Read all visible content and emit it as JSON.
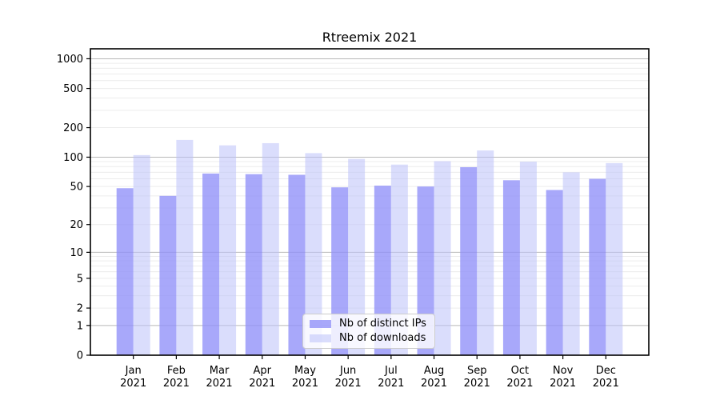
{
  "chart_data": {
    "type": "bar",
    "title": "Rtreemix 2021",
    "categories": [
      "Jan",
      "Feb",
      "Mar",
      "Apr",
      "May",
      "Jun",
      "Jul",
      "Aug",
      "Sep",
      "Oct",
      "Nov",
      "Dec"
    ],
    "x_tick_year": "2021",
    "series": [
      {
        "name": "Nb of distinct IPs",
        "color": "#9090f8",
        "alpha": 0.78,
        "values": [
          48,
          40,
          68,
          67,
          66,
          49,
          51,
          50,
          79,
          58,
          46,
          60
        ]
      },
      {
        "name": "Nb of downloads",
        "color": "#bcc1fa",
        "alpha": 0.55,
        "values": [
          105,
          150,
          132,
          139,
          110,
          96,
          84,
          91,
          117,
          90,
          70,
          87
        ]
      }
    ],
    "yscale": "log1p",
    "yticks": [
      0,
      1,
      2,
      5,
      10,
      20,
      50,
      100,
      200,
      500,
      1000
    ],
    "ylim": [
      0,
      1260
    ],
    "grid": "horizontal",
    "legend_position": "lower center inside plot"
  },
  "colors": {
    "background": "#ffffff",
    "axis": "#000000",
    "major_grid": "#b9b9b9",
    "minor_grid": "#ececec",
    "tick_label": "#000000",
    "legend_border": "#cccccc"
  }
}
